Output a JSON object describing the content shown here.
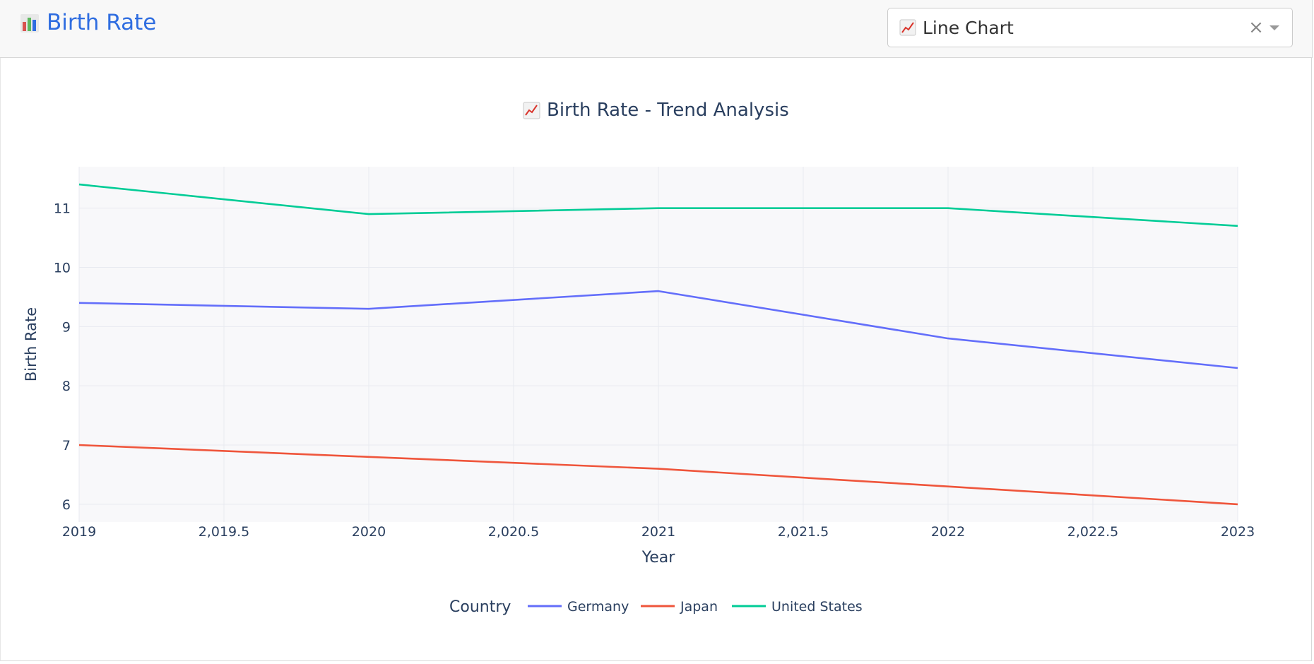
{
  "header": {
    "app_title": "Birth Rate",
    "app_icon": "bar-chart-emoji-icon",
    "chart_type_select": {
      "selected": "Line Chart",
      "icon": "line-chart-emoji-icon",
      "clear_glyph": "×"
    }
  },
  "colors": {
    "brand": "#2f6de0",
    "plot_bg": "#f8f8fa",
    "grid": "#e8eaf0",
    "text": "#2a3f5f",
    "germany": "#636efa",
    "japan": "#ef553b",
    "united_states": "#00cc96"
  },
  "chart_data": {
    "type": "line",
    "title": "Birth Rate - Trend Analysis",
    "title_icon": "line-chart-emoji-icon",
    "xlabel": "Year",
    "ylabel": "Birth Rate",
    "x": [
      2019,
      2020,
      2021,
      2022,
      2023
    ],
    "xlim": [
      2019,
      2023
    ],
    "ylim": [
      5.7,
      11.7
    ],
    "x_ticks": [
      "2019",
      "2,019.5",
      "2020",
      "2,020.5",
      "2021",
      "2,021.5",
      "2022",
      "2,022.5",
      "2023"
    ],
    "x_tick_values": [
      2019,
      2019.5,
      2020,
      2020.5,
      2021,
      2021.5,
      2022,
      2022.5,
      2023
    ],
    "y_ticks": [
      "6",
      "7",
      "8",
      "9",
      "10",
      "11"
    ],
    "y_tick_values": [
      6,
      7,
      8,
      9,
      10,
      11
    ],
    "grid": true,
    "legend": {
      "title": "Country",
      "placement": "bottom-center"
    },
    "series": [
      {
        "name": "Germany",
        "color": "#636efa",
        "values": [
          9.4,
          9.3,
          9.6,
          8.8,
          8.3
        ]
      },
      {
        "name": "Japan",
        "color": "#ef553b",
        "values": [
          7.0,
          6.8,
          6.6,
          6.3,
          6.0
        ]
      },
      {
        "name": "United States",
        "color": "#00cc96",
        "values": [
          11.4,
          10.9,
          11.0,
          11.0,
          10.7
        ]
      }
    ]
  }
}
